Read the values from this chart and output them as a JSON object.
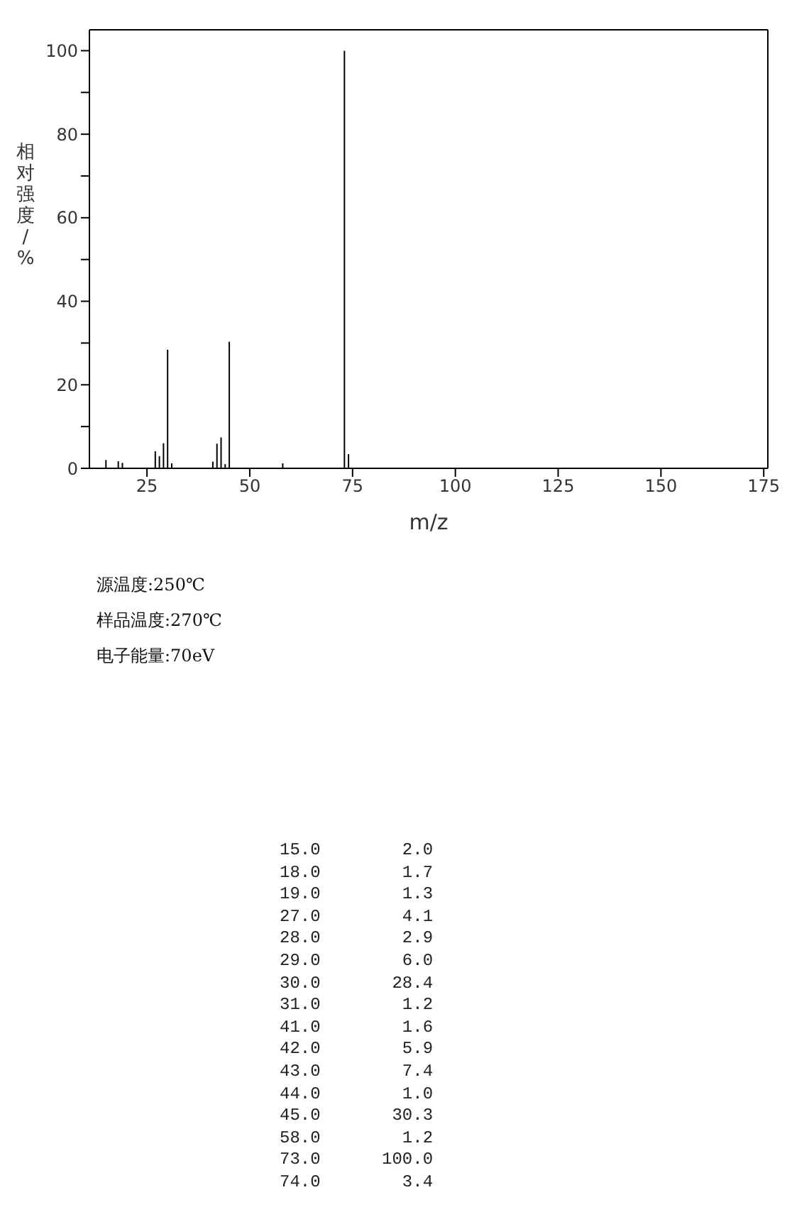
{
  "chart_data": [
    {
      "type": "bar",
      "xlabel": "m/z",
      "ylabel": "相对强度/%",
      "x": [
        15,
        18,
        19,
        27,
        28,
        29,
        30,
        31,
        41,
        42,
        43,
        44,
        45,
        58,
        73,
        74
      ],
      "values": [
        2.0,
        1.7,
        1.3,
        4.1,
        2.9,
        6.0,
        28.4,
        1.2,
        1.6,
        5.9,
        7.4,
        1.0,
        30.3,
        1.2,
        100.0,
        3.4
      ],
      "color": "#000000",
      "xlim": [
        11,
        176
      ],
      "xticks": [
        25,
        50,
        75,
        100,
        125,
        150,
        175
      ],
      "ylim": [
        0,
        105
      ],
      "yticks": [
        0,
        {
          "value": 10,
          "label": null
        },
        20,
        {
          "value": 30,
          "label": null
        },
        40,
        {
          "value": 50,
          "label": null
        },
        60,
        {
          "value": 70,
          "label": null
        },
        80,
        {
          "value": 90,
          "label": null
        },
        100
      ],
      "annotations": [
        "源温度:250℃",
        "样品温度:270℃",
        "电子能量:70eV"
      ]
    },
    {
      "type": "other",
      "annotations": [
        "15.0        2.0",
        "18.0        1.7",
        "19.0        1.3",
        "27.0        4.1",
        "28.0        2.9",
        "29.0        6.0",
        "30.0       28.4",
        "31.0        1.2",
        "41.0        1.6",
        "42.0        5.9",
        "43.0        7.4",
        "44.0        1.0",
        "45.0       30.3",
        "58.0        1.2",
        "73.0      100.0",
        "74.0        3.4"
      ]
    }
  ]
}
